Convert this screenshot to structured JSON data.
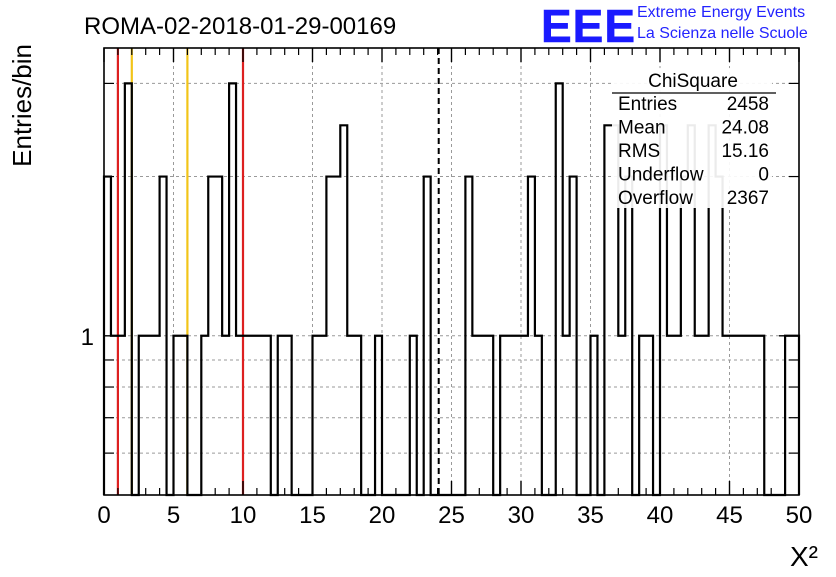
{
  "header": {
    "run_title": "ROMA-02-2018-01-29-00169",
    "logo_text": "EEE",
    "logo_line1": "Extreme Energy Events",
    "logo_line2": "La Scienza nelle Scuole"
  },
  "stats_box": {
    "title": "ChiSquare",
    "rows": [
      {
        "label": "Entries",
        "value": "2458"
      },
      {
        "label": "Mean",
        "value": "24.08"
      },
      {
        "label": "RMS",
        "value": "15.16"
      },
      {
        "label": "Underflow",
        "value": "0"
      },
      {
        "label": "Overflow",
        "value": "2367"
      }
    ]
  },
  "colors": {
    "histogram": "#000000",
    "grid": "#9a9a9a",
    "red_line": "#dd2020",
    "yellow_line": "#f2c418",
    "logo": "#1a1aff",
    "logo_text": "#2323ff"
  },
  "chart_data": {
    "type": "bar",
    "title": "ROMA-02-2018-01-29-00169",
    "xlabel": "X²",
    "ylabel": "Entries/bin",
    "y_scale": "log",
    "xlim": [
      0,
      50
    ],
    "ylim": [
      0.5,
      3.5
    ],
    "grid": true,
    "bin_width": 0.5,
    "x_ticks": [
      0,
      5,
      10,
      15,
      20,
      25,
      30,
      35,
      40,
      45,
      50
    ],
    "y_tick_labels": [
      {
        "value": 1,
        "label": "1"
      }
    ],
    "y_minor_ticks": [
      0.6,
      0.7,
      0.8,
      0.9,
      2,
      3
    ],
    "bins": [
      {
        "x": 0.0,
        "y": 2
      },
      {
        "x": 0.5,
        "y": 1
      },
      {
        "x": 1.0,
        "y": 1
      },
      {
        "x": 1.5,
        "y": 3
      },
      {
        "x": 2.5,
        "y": 1
      },
      {
        "x": 3.0,
        "y": 1
      },
      {
        "x": 3.5,
        "y": 1
      },
      {
        "x": 4.0,
        "y": 2
      },
      {
        "x": 5.0,
        "y": 1
      },
      {
        "x": 5.5,
        "y": 1
      },
      {
        "x": 7.0,
        "y": 1
      },
      {
        "x": 7.5,
        "y": 2
      },
      {
        "x": 8.0,
        "y": 2
      },
      {
        "x": 8.5,
        "y": 1
      },
      {
        "x": 9.0,
        "y": 3
      },
      {
        "x": 9.5,
        "y": 1
      },
      {
        "x": 10.0,
        "y": 1
      },
      {
        "x": 10.5,
        "y": 1
      },
      {
        "x": 11.0,
        "y": 1
      },
      {
        "x": 11.5,
        "y": 1
      },
      {
        "x": 12.5,
        "y": 1
      },
      {
        "x": 13.0,
        "y": 1
      },
      {
        "x": 15.0,
        "y": 1
      },
      {
        "x": 15.5,
        "y": 1
      },
      {
        "x": 16.0,
        "y": 2
      },
      {
        "x": 16.5,
        "y": 2
      },
      {
        "x": 17.0,
        "y": 2.5
      },
      {
        "x": 17.5,
        "y": 1
      },
      {
        "x": 18.0,
        "y": 1
      },
      {
        "x": 19.5,
        "y": 1
      },
      {
        "x": 22.0,
        "y": 1
      },
      {
        "x": 23.0,
        "y": 2
      },
      {
        "x": 26.0,
        "y": 2
      },
      {
        "x": 26.5,
        "y": 1
      },
      {
        "x": 27.0,
        "y": 1
      },
      {
        "x": 27.5,
        "y": 1
      },
      {
        "x": 28.5,
        "y": 1
      },
      {
        "x": 29.0,
        "y": 1
      },
      {
        "x": 29.5,
        "y": 1
      },
      {
        "x": 30.0,
        "y": 1
      },
      {
        "x": 30.5,
        "y": 2
      },
      {
        "x": 31.0,
        "y": 1
      },
      {
        "x": 32.5,
        "y": 3
      },
      {
        "x": 33.0,
        "y": 1
      },
      {
        "x": 33.5,
        "y": 2
      },
      {
        "x": 35.0,
        "y": 1
      },
      {
        "x": 36.0,
        "y": 2.5
      },
      {
        "x": 36.5,
        "y": 2.5
      },
      {
        "x": 37.0,
        "y": 1
      },
      {
        "x": 37.5,
        "y": 2
      },
      {
        "x": 38.5,
        "y": 1
      },
      {
        "x": 39.0,
        "y": 1
      },
      {
        "x": 40.0,
        "y": 2.5
      },
      {
        "x": 40.5,
        "y": 1
      },
      {
        "x": 41.0,
        "y": 1
      },
      {
        "x": 41.5,
        "y": 2
      },
      {
        "x": 42.0,
        "y": 2.5
      },
      {
        "x": 42.5,
        "y": 1
      },
      {
        "x": 43.0,
        "y": 1
      },
      {
        "x": 43.5,
        "y": 2.5
      },
      {
        "x": 44.0,
        "y": 2
      },
      {
        "x": 44.5,
        "y": 1
      },
      {
        "x": 45.0,
        "y": 1
      },
      {
        "x": 45.5,
        "y": 1
      },
      {
        "x": 46.0,
        "y": 1
      },
      {
        "x": 46.5,
        "y": 1
      },
      {
        "x": 47.0,
        "y": 1
      },
      {
        "x": 49.0,
        "y": 1
      },
      {
        "x": 49.5,
        "y": 1
      }
    ],
    "markers": [
      {
        "x": 1,
        "color": "red",
        "style": "solid"
      },
      {
        "x": 2,
        "color": "yellow",
        "style": "solid"
      },
      {
        "x": 6,
        "color": "yellow",
        "style": "solid"
      },
      {
        "x": 10,
        "color": "red",
        "style": "solid"
      },
      {
        "x": 24.08,
        "color": "black",
        "style": "dashed"
      }
    ]
  }
}
